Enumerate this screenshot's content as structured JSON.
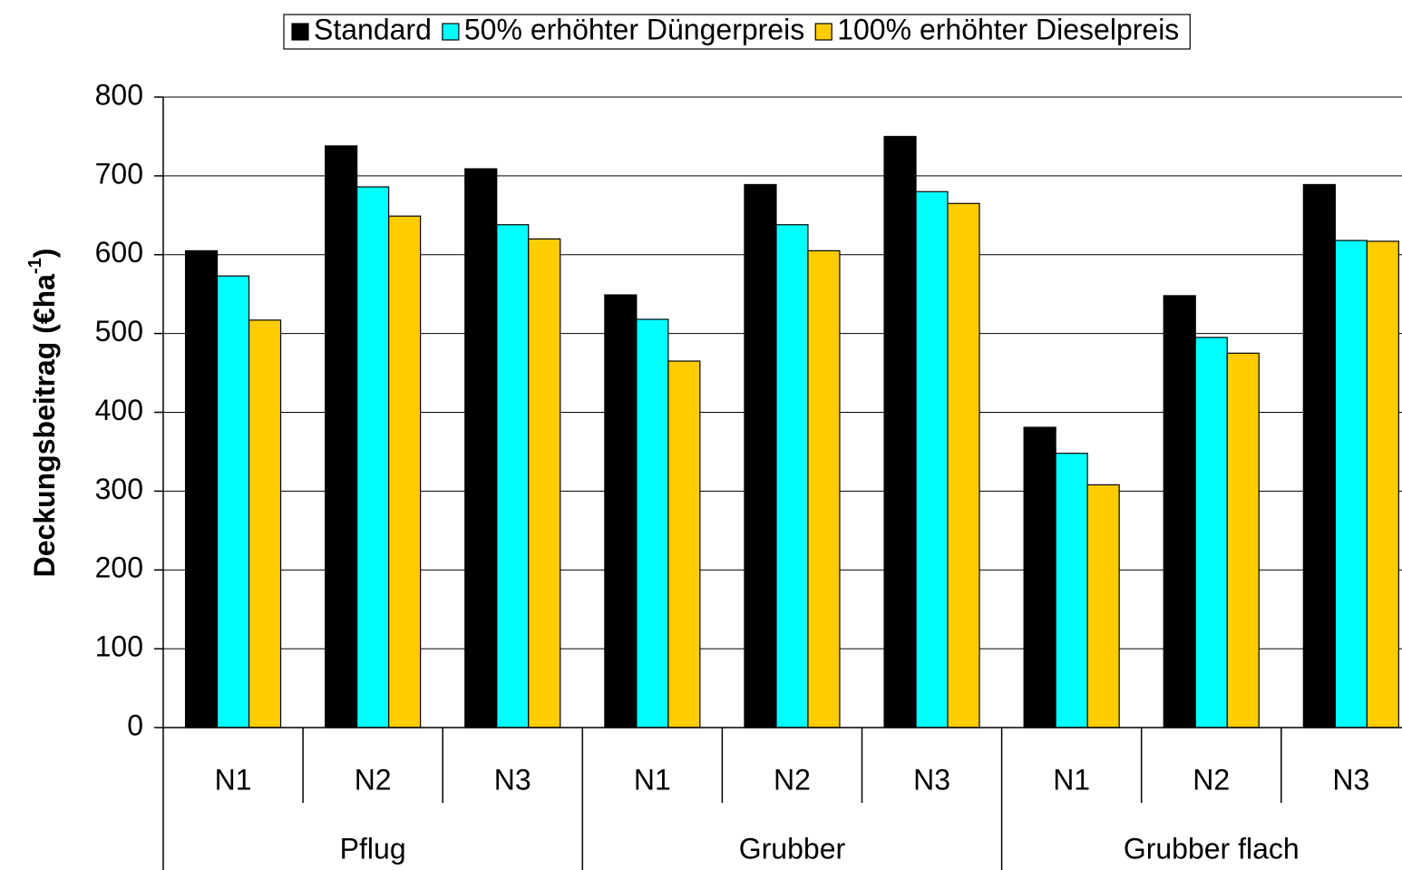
{
  "chart_data": {
    "type": "bar",
    "ylabel": {
      "text": "Deckungsbeitrag (€ha",
      "superscript": "-1",
      "suffix": ")"
    },
    "categories": [
      "N1",
      "N2",
      "N3",
      "N1",
      "N2",
      "N3",
      "N1",
      "N2",
      "N3"
    ],
    "groups": [
      "Pflug",
      "Grubber",
      "Grubber flach"
    ],
    "series": [
      {
        "name": "Standard",
        "color": "#000000",
        "values": [
          605,
          738,
          709,
          549,
          689,
          750,
          381,
          548,
          689
        ]
      },
      {
        "name": "50% erhöhter Düngerpreis",
        "color": "#00ffff",
        "values": [
          573,
          686,
          638,
          518,
          638,
          680,
          348,
          495,
          618
        ]
      },
      {
        "name": "100% erhöhter Dieselpreis",
        "color": "#ffcc00",
        "values": [
          517,
          649,
          620,
          465,
          605,
          665,
          308,
          475,
          617
        ]
      }
    ],
    "ylim": [
      0,
      800
    ],
    "yticks": [
      0,
      100,
      200,
      300,
      400,
      500,
      600,
      700,
      800
    ],
    "grid": true,
    "legend": "top"
  }
}
